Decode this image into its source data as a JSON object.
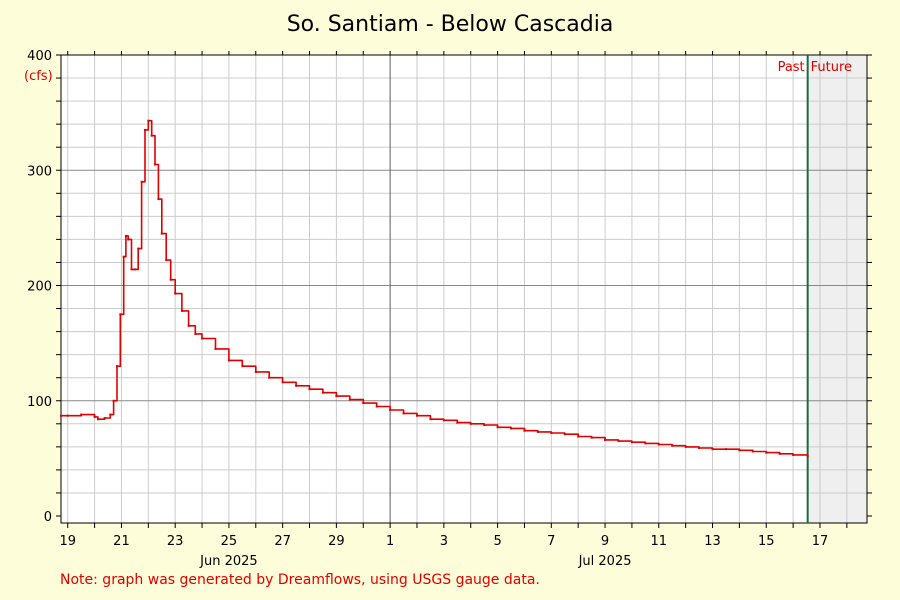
{
  "chart_data": {
    "type": "line",
    "title": "So. Santiam - Below Cascadia",
    "ylabel": "(cfs)",
    "ylim": [
      0,
      400
    ],
    "yticks": [
      0,
      100,
      200,
      300,
      400
    ],
    "x_start": "Jun 18 2025 18:00",
    "x_end": "Jul 18 2025 18:00",
    "xtick_labels": [
      {
        "day": "Jun 19",
        "label": "19"
      },
      {
        "day": "Jun 21",
        "label": "21"
      },
      {
        "day": "Jun 23",
        "label": "23"
      },
      {
        "day": "Jun 25",
        "label": "25"
      },
      {
        "day": "Jun 27",
        "label": "27"
      },
      {
        "day": "Jun 29",
        "label": "29"
      },
      {
        "day": "Jul 1",
        "label": "1"
      },
      {
        "day": "Jul 3",
        "label": "3"
      },
      {
        "day": "Jul 5",
        "label": "5"
      },
      {
        "day": "Jul 7",
        "label": "7"
      },
      {
        "day": "Jul 9",
        "label": "9"
      },
      {
        "day": "Jul 11",
        "label": "11"
      },
      {
        "day": "Jul 13",
        "label": "13"
      },
      {
        "day": "Jul 15",
        "label": "15"
      },
      {
        "day": "Jul 17",
        "label": "17"
      }
    ],
    "month_labels": [
      {
        "center": "Jun 25",
        "label": "Jun 2025"
      },
      {
        "center": "Jul 9",
        "label": "Jul 2025"
      }
    ],
    "month_divider": "Jul 1",
    "now": "Jul 16 2025 13:00",
    "past_label": "Past",
    "future_label": "Future",
    "grid": true,
    "line_color": "#e00000",
    "now_color": "#1a6b45",
    "future_shade": "#efefef",
    "series": [
      {
        "points": [
          [
            "Jun 18 2025 18:00",
            87
          ],
          [
            "Jun 19 2025 00:00",
            87
          ],
          [
            "Jun 19 2025 12:00",
            88
          ],
          [
            "Jun 20 2025 00:00",
            86
          ],
          [
            "Jun 20 2025 03:00",
            84
          ],
          [
            "Jun 20 2025 09:00",
            85
          ],
          [
            "Jun 20 2025 14:00",
            88
          ],
          [
            "Jun 20 2025 17:00",
            100
          ],
          [
            "Jun 20 2025 20:00",
            130
          ],
          [
            "Jun 20 2025 23:00",
            175
          ],
          [
            "Jun 21 2025 02:00",
            225
          ],
          [
            "Jun 21 2025 04:00",
            243
          ],
          [
            "Jun 21 2025 06:00",
            240
          ],
          [
            "Jun 21 2025 09:00",
            214
          ],
          [
            "Jun 21 2025 12:00",
            214
          ],
          [
            "Jun 21 2025 15:00",
            232
          ],
          [
            "Jun 21 2025 18:00",
            290
          ],
          [
            "Jun 21 2025 21:00",
            335
          ],
          [
            "Jun 22 2025 00:00",
            343
          ],
          [
            "Jun 22 2025 03:00",
            330
          ],
          [
            "Jun 22 2025 06:00",
            305
          ],
          [
            "Jun 22 2025 09:00",
            275
          ],
          [
            "Jun 22 2025 12:00",
            245
          ],
          [
            "Jun 22 2025 16:00",
            222
          ],
          [
            "Jun 22 2025 20:00",
            205
          ],
          [
            "Jun 23 2025 00:00",
            193
          ],
          [
            "Jun 23 2025 06:00",
            178
          ],
          [
            "Jun 23 2025 12:00",
            165
          ],
          [
            "Jun 23 2025 18:00",
            158
          ],
          [
            "Jun 24 2025 00:00",
            154
          ],
          [
            "Jun 24 2025 12:00",
            145
          ],
          [
            "Jun 25 2025 00:00",
            135
          ],
          [
            "Jun 25 2025 12:00",
            130
          ],
          [
            "Jun 26 2025 00:00",
            125
          ],
          [
            "Jun 26 2025 12:00",
            120
          ],
          [
            "Jun 27 2025 00:00",
            116
          ],
          [
            "Jun 27 2025 12:00",
            113
          ],
          [
            "Jun 28 2025 00:00",
            110
          ],
          [
            "Jun 28 2025 12:00",
            107
          ],
          [
            "Jun 29 2025 00:00",
            104
          ],
          [
            "Jun 29 2025 12:00",
            101
          ],
          [
            "Jun 30 2025 00:00",
            98
          ],
          [
            "Jun 30 2025 12:00",
            95
          ],
          [
            "Jul 1 2025 00:00",
            92
          ],
          [
            "Jul 1 2025 12:00",
            89
          ],
          [
            "Jul 2 2025 00:00",
            87
          ],
          [
            "Jul 2 2025 12:00",
            84
          ],
          [
            "Jul 3 2025 00:00",
            83
          ],
          [
            "Jul 3 2025 12:00",
            81
          ],
          [
            "Jul 4 2025 00:00",
            80
          ],
          [
            "Jul 4 2025 12:00",
            79
          ],
          [
            "Jul 5 2025 00:00",
            77
          ],
          [
            "Jul 5 2025 12:00",
            76
          ],
          [
            "Jul 6 2025 00:00",
            74
          ],
          [
            "Jul 6 2025 12:00",
            73
          ],
          [
            "Jul 7 2025 00:00",
            72
          ],
          [
            "Jul 7 2025 12:00",
            71
          ],
          [
            "Jul 8 2025 00:00",
            69
          ],
          [
            "Jul 8 2025 12:00",
            68
          ],
          [
            "Jul 9 2025 00:00",
            66
          ],
          [
            "Jul 9 2025 12:00",
            65
          ],
          [
            "Jul 10 2025 00:00",
            64
          ],
          [
            "Jul 10 2025 12:00",
            63
          ],
          [
            "Jul 11 2025 00:00",
            62
          ],
          [
            "Jul 11 2025 12:00",
            61
          ],
          [
            "Jul 12 2025 00:00",
            60
          ],
          [
            "Jul 12 2025 12:00",
            59
          ],
          [
            "Jul 13 2025 00:00",
            58
          ],
          [
            "Jul 13 2025 12:00",
            58
          ],
          [
            "Jul 14 2025 00:00",
            57
          ],
          [
            "Jul 14 2025 12:00",
            56
          ],
          [
            "Jul 15 2025 00:00",
            55
          ],
          [
            "Jul 15 2025 12:00",
            54
          ],
          [
            "Jul 16 2025 00:00",
            53
          ],
          [
            "Jul 16 2025 13:00",
            52
          ]
        ]
      }
    ]
  },
  "footnote": "Note: graph was generated by Dreamflows, using USGS gauge data."
}
